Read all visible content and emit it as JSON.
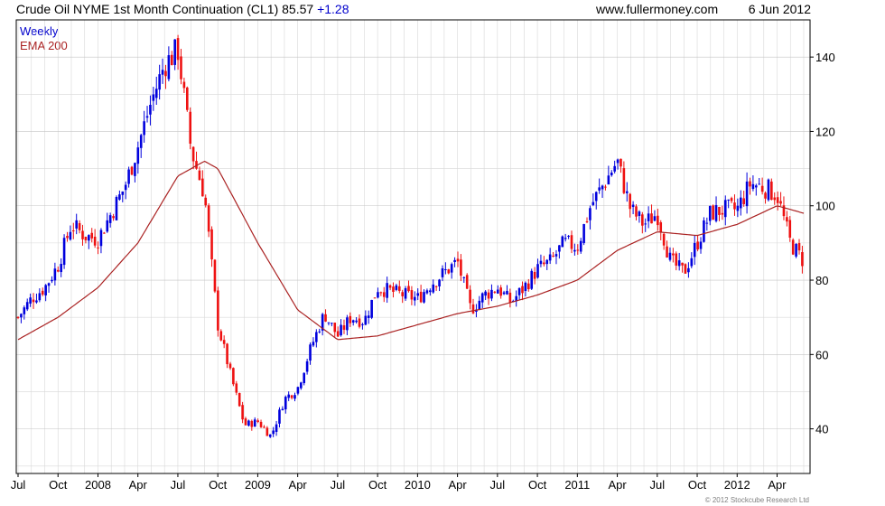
{
  "header": {
    "title": "Crude Oil NYME 1st Month Continuation (CL1) 85.57",
    "change": "+1.28",
    "site": "www.fullermoney.com",
    "date": "6 Jun 2012"
  },
  "legend": {
    "weekly": "Weekly",
    "ema": "EMA 200"
  },
  "copyright": "© 2012 Stockcube Research Ltd",
  "colors": {
    "up": "#0000dd",
    "down": "#ee1111",
    "ema": "#aa2222",
    "grid": "#d8d8d8",
    "frame": "#000000"
  },
  "chart_data": {
    "type": "candlestick",
    "interval": "weekly",
    "ylim": [
      28,
      150
    ],
    "yticks": [
      40,
      60,
      80,
      100,
      120,
      140
    ],
    "xticks": [
      "Jul",
      "Oct",
      "2008",
      "Apr",
      "Jul",
      "Oct",
      "2009",
      "Apr",
      "Jul",
      "Oct",
      "2010",
      "Apr",
      "Jul",
      "Oct",
      "2011",
      "Apr",
      "Jul",
      "Oct",
      "2012",
      "Apr"
    ],
    "x_range": [
      "2007-07",
      "2012-06"
    ],
    "close_anchors": [
      [
        "2007-07",
        70
      ],
      [
        "2007-08",
        75
      ],
      [
        "2007-09",
        78
      ],
      [
        "2007-10",
        84
      ],
      [
        "2007-11",
        95
      ],
      [
        "2007-12",
        92
      ],
      [
        "2008-01",
        91
      ],
      [
        "2008-02",
        98
      ],
      [
        "2008-03",
        105
      ],
      [
        "2008-04",
        116
      ],
      [
        "2008-05",
        128
      ],
      [
        "2008-06",
        138
      ],
      [
        "2008-07",
        142
      ],
      [
        "2008-08",
        115
      ],
      [
        "2008-09",
        103
      ],
      [
        "2008-10",
        68
      ],
      [
        "2008-11",
        54
      ],
      [
        "2008-12",
        41
      ],
      [
        "2009-01",
        42
      ],
      [
        "2009-02",
        38
      ],
      [
        "2009-03",
        48
      ],
      [
        "2009-04",
        51
      ],
      [
        "2009-05",
        62
      ],
      [
        "2009-06",
        71
      ],
      [
        "2009-07",
        65
      ],
      [
        "2009-08",
        70
      ],
      [
        "2009-09",
        69
      ],
      [
        "2009-10",
        78
      ],
      [
        "2009-11",
        77
      ],
      [
        "2009-12",
        76
      ],
      [
        "2010-01",
        75
      ],
      [
        "2010-02",
        79
      ],
      [
        "2010-03",
        82
      ],
      [
        "2010-04",
        85
      ],
      [
        "2010-05",
        72
      ],
      [
        "2010-06",
        76
      ],
      [
        "2010-07",
        78
      ],
      [
        "2010-08",
        74
      ],
      [
        "2010-09",
        78
      ],
      [
        "2010-10",
        83
      ],
      [
        "2010-11",
        85
      ],
      [
        "2010-12",
        90
      ],
      [
        "2011-01",
        89
      ],
      [
        "2011-02",
        100
      ],
      [
        "2011-03",
        106
      ],
      [
        "2011-04",
        112
      ],
      [
        "2011-05",
        99
      ],
      [
        "2011-06",
        95
      ],
      [
        "2011-07",
        98
      ],
      [
        "2011-08",
        85
      ],
      [
        "2011-09",
        82
      ],
      [
        "2011-10",
        90
      ],
      [
        "2011-11",
        98
      ],
      [
        "2011-12",
        99
      ],
      [
        "2012-01",
        99
      ],
      [
        "2012-02",
        106
      ],
      [
        "2012-03",
        105
      ],
      [
        "2012-04",
        103
      ],
      [
        "2012-05",
        90
      ],
      [
        "2012-06",
        85
      ]
    ],
    "ema_anchors": [
      [
        "2007-07",
        64
      ],
      [
        "2007-10",
        70
      ],
      [
        "2008-01",
        78
      ],
      [
        "2008-04",
        90
      ],
      [
        "2008-07",
        108
      ],
      [
        "2008-09",
        112
      ],
      [
        "2008-10",
        110
      ],
      [
        "2009-01",
        90
      ],
      [
        "2009-04",
        72
      ],
      [
        "2009-07",
        64
      ],
      [
        "2009-10",
        65
      ],
      [
        "2010-01",
        68
      ],
      [
        "2010-04",
        71
      ],
      [
        "2010-07",
        73
      ],
      [
        "2010-10",
        76
      ],
      [
        "2011-01",
        80
      ],
      [
        "2011-04",
        88
      ],
      [
        "2011-07",
        93
      ],
      [
        "2011-10",
        92
      ],
      [
        "2012-01",
        95
      ],
      [
        "2012-04",
        100
      ],
      [
        "2012-06",
        98
      ]
    ]
  }
}
